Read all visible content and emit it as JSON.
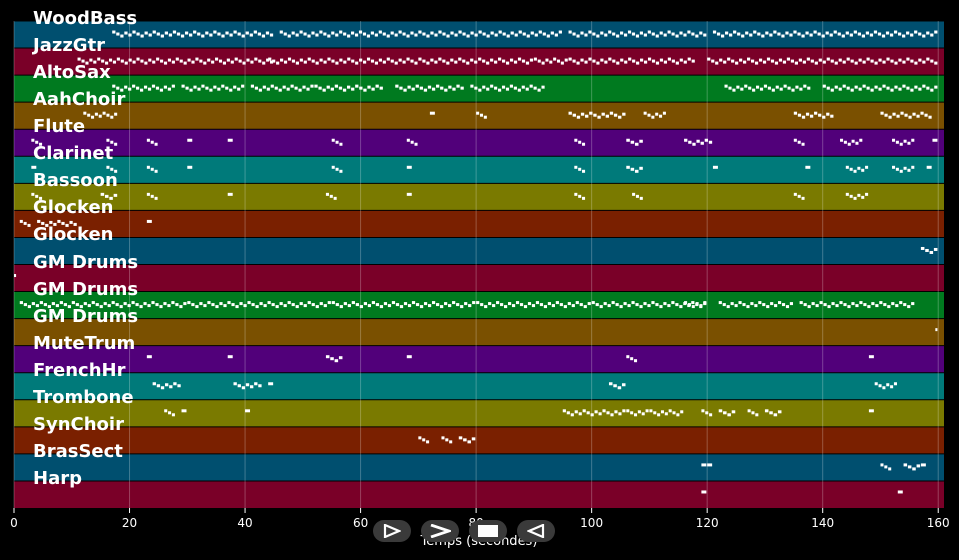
{
  "tracks": [
    {
      "name": "WoodBass",
      "color": "#004f6f"
    },
    {
      "name": "JazzGtr",
      "color": "#7a0028"
    },
    {
      "name": "AltoSax",
      "color": "#007a1f"
    },
    {
      "name": "AahChoir",
      "color": "#7a5000"
    },
    {
      "name": "Flute",
      "color": "#51007a"
    },
    {
      "name": "Clarinet",
      "color": "#007a7a"
    },
    {
      "name": "Bassoon",
      "color": "#7a7a00"
    },
    {
      "name": "Glocken",
      "color": "#7a2000"
    },
    {
      "name": "Glocken",
      "color": "#004f6f"
    },
    {
      "name": "GM Drums",
      "color": "#7a0028"
    },
    {
      "name": "GM Drums",
      "color": "#007a1f"
    },
    {
      "name": "GM Drums",
      "color": "#7a5000"
    },
    {
      "name": "MuteTrum",
      "color": "#51007a"
    },
    {
      "name": "FrenchHr",
      "color": "#007a7a"
    },
    {
      "name": "Trombone",
      "color": "#7a7a00"
    },
    {
      "name": "SynChoir",
      "color": "#7a2000"
    },
    {
      "name": "BrasSect",
      "color": "#004f6f"
    },
    {
      "name": "Harp",
      "color": "#7a0028"
    }
  ],
  "axis": {
    "xlabel": "Temps (secondes)",
    "xlim": [
      0,
      161
    ],
    "ticks": [
      0,
      20,
      40,
      60,
      80,
      100,
      120,
      140,
      160
    ],
    "tick_labels": [
      "0",
      "20",
      "40",
      "60",
      "80",
      "100",
      "120",
      "140",
      "160"
    ]
  },
  "note_color": "#ffffff",
  "notes": [
    [
      [
        17,
        45
      ],
      [
        46,
        70
      ],
      [
        70,
        95
      ],
      [
        96,
        120
      ],
      [
        121,
        160
      ]
    ],
    [
      [
        11,
        28
      ],
      [
        28,
        45
      ],
      [
        44,
        70
      ],
      [
        70,
        90
      ],
      [
        90,
        96
      ],
      [
        96,
        118
      ],
      [
        120,
        160
      ]
    ],
    [
      [
        17,
        28
      ],
      [
        29,
        40
      ],
      [
        41,
        52
      ],
      [
        52,
        64
      ],
      [
        66,
        78
      ],
      [
        79,
        92
      ],
      [
        123,
        138
      ],
      [
        140,
        160
      ]
    ],
    [
      [
        12,
        18
      ],
      [
        72,
        73
      ],
      [
        80,
        82
      ],
      [
        96,
        106
      ],
      [
        109,
        113
      ],
      [
        135,
        142
      ],
      [
        150,
        159
      ]
    ],
    [
      [
        3,
        5
      ],
      [
        16,
        18
      ],
      [
        23,
        25
      ],
      [
        30,
        31
      ],
      [
        37,
        38
      ],
      [
        55,
        57
      ],
      [
        68,
        70
      ],
      [
        97,
        99
      ],
      [
        106,
        109
      ],
      [
        116,
        121
      ],
      [
        135,
        137
      ],
      [
        143,
        147
      ],
      [
        152,
        156
      ],
      [
        159,
        160
      ]
    ],
    [
      [
        3,
        4
      ],
      [
        16,
        18
      ],
      [
        23,
        25
      ],
      [
        30,
        31
      ],
      [
        55,
        57
      ],
      [
        68,
        69
      ],
      [
        97,
        99
      ],
      [
        106,
        109
      ],
      [
        121,
        122
      ],
      [
        137,
        138
      ],
      [
        144,
        148
      ],
      [
        152,
        156
      ],
      [
        158,
        159
      ]
    ],
    [
      [
        3,
        5
      ],
      [
        15,
        18
      ],
      [
        23,
        25
      ],
      [
        37,
        38
      ],
      [
        54,
        56
      ],
      [
        68,
        69
      ],
      [
        97,
        99
      ],
      [
        107,
        109
      ],
      [
        135,
        137
      ],
      [
        144,
        148
      ]
    ],
    [
      [
        1,
        3
      ],
      [
        4,
        11
      ],
      [
        23,
        24
      ]
    ],
    [
      [
        157,
        160
      ]
    ],
    [
      [
        0,
        0.5
      ]
    ],
    [
      [
        1,
        10
      ],
      [
        10,
        30
      ],
      [
        30,
        55
      ],
      [
        55,
        80
      ],
      [
        80,
        100
      ],
      [
        100,
        120
      ],
      [
        122,
        135
      ],
      [
        136,
        156
      ],
      [
        116,
        120
      ]
    ],
    [
      [
        159.5,
        160
      ]
    ],
    [
      [
        23,
        24
      ],
      [
        37,
        38
      ],
      [
        54,
        57
      ],
      [
        68,
        69
      ],
      [
        106,
        108
      ],
      [
        148,
        149
      ]
    ],
    [
      [
        24,
        29
      ],
      [
        38,
        43
      ],
      [
        44,
        45
      ],
      [
        103,
        106
      ],
      [
        149,
        153
      ]
    ],
    [
      [
        26,
        28
      ],
      [
        29,
        30
      ],
      [
        40,
        41
      ],
      [
        95,
        106
      ],
      [
        106,
        110
      ],
      [
        110,
        116
      ],
      [
        119,
        121
      ],
      [
        122,
        125
      ],
      [
        127,
        129
      ],
      [
        130,
        133
      ],
      [
        148,
        149
      ]
    ],
    [
      [
        70,
        72
      ],
      [
        74,
        76
      ],
      [
        77,
        80
      ]
    ],
    [
      [
        119,
        120
      ],
      [
        120,
        121
      ],
      [
        150,
        152
      ],
      [
        154,
        157
      ],
      [
        157,
        158
      ]
    ],
    [
      [
        119,
        120
      ],
      [
        153,
        154
      ]
    ]
  ],
  "controls": [
    {
      "name": "play-icon"
    },
    {
      "name": "fast-forward-icon"
    },
    {
      "name": "stop-icon"
    },
    {
      "name": "rewind-icon"
    }
  ]
}
